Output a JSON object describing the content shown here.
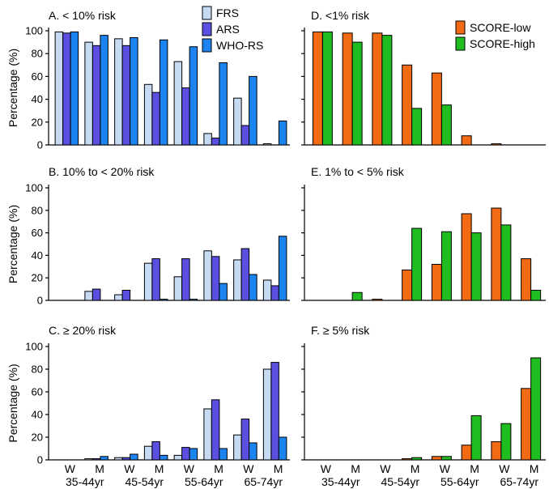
{
  "chart_data": [
    {
      "type": "bar",
      "panel": "A",
      "title": "A. < 10% risk",
      "ylabel": "Percentage (%)",
      "ylim": [
        0,
        100
      ],
      "yticks": [
        0,
        20,
        40,
        60,
        80,
        100
      ],
      "categories": [
        "W 35-44yr",
        "M 35-44yr",
        "W 45-54yr",
        "M 45-54yr",
        "W 55-64yr",
        "M 55-64yr",
        "W 65-74yr",
        "M 65-74yr"
      ],
      "series": [
        {
          "name": "FRS",
          "color": "#c6daf2",
          "values": [
            99,
            90,
            93,
            53,
            73,
            10,
            41,
            1
          ]
        },
        {
          "name": "ARS",
          "color": "#5a4fe0",
          "values": [
            98,
            87,
            87,
            46,
            50,
            6,
            17,
            0
          ]
        },
        {
          "name": "WHO-RS",
          "color": "#1b84f0",
          "values": [
            99,
            96,
            94,
            92,
            86,
            72,
            60,
            21
          ]
        }
      ],
      "legend": "top-right"
    },
    {
      "type": "bar",
      "panel": "B",
      "title": "B. 10% to < 20% risk",
      "ylabel": "Percentage (%)",
      "ylim": [
        0,
        100
      ],
      "yticks": [
        0,
        20,
        40,
        60,
        80,
        100
      ],
      "categories": [
        "W 35-44yr",
        "M 35-44yr",
        "W 45-54yr",
        "M 45-54yr",
        "W 55-64yr",
        "M 55-64yr",
        "W 65-74yr",
        "M 65-74yr"
      ],
      "series": [
        {
          "name": "FRS",
          "color": "#c6daf2",
          "values": [
            0,
            8,
            5,
            33,
            21,
            44,
            36,
            18
          ]
        },
        {
          "name": "ARS",
          "color": "#5a4fe0",
          "values": [
            0,
            10,
            9,
            37,
            37,
            39,
            46,
            13
          ]
        },
        {
          "name": "WHO-RS",
          "color": "#1b84f0",
          "values": [
            0,
            0,
            0,
            1,
            1,
            15,
            23,
            57
          ]
        }
      ]
    },
    {
      "type": "bar",
      "panel": "C",
      "title": "C. ≥ 20% risk",
      "ylabel": "Percentage (%)",
      "ylim": [
        0,
        100
      ],
      "yticks": [
        0,
        20,
        40,
        60,
        80,
        100
      ],
      "categories": [
        "W 35-44yr",
        "M 35-44yr",
        "W 45-54yr",
        "M 45-54yr",
        "W 55-64yr",
        "M 55-64yr",
        "W 65-74yr",
        "M 65-74yr"
      ],
      "series": [
        {
          "name": "FRS",
          "color": "#c6daf2",
          "values": [
            0,
            1,
            2,
            12,
            4,
            45,
            22,
            80
          ]
        },
        {
          "name": "ARS",
          "color": "#5a4fe0",
          "values": [
            0,
            1,
            2,
            16,
            11,
            53,
            36,
            86
          ]
        },
        {
          "name": "WHO-RS",
          "color": "#1b84f0",
          "values": [
            0,
            3,
            5,
            4,
            10,
            10,
            15,
            20
          ]
        }
      ],
      "xgroup_labels": [
        "W",
        "M",
        "W",
        "M",
        "W",
        "M",
        "W",
        "M"
      ],
      "xage_labels": [
        "35-44yr",
        "45-54yr",
        "55-64yr",
        "65-74yr"
      ]
    },
    {
      "type": "bar",
      "panel": "D",
      "title": "D. <1% risk",
      "ylim": [
        0,
        100
      ],
      "categories": [
        "W 35-44yr",
        "M 35-44yr",
        "W 45-54yr",
        "M 45-54yr",
        "W 55-64yr",
        "M 55-64yr",
        "W 65-74yr",
        "M 65-74yr"
      ],
      "series": [
        {
          "name": "SCORE-low",
          "color": "#f26a13",
          "values": [
            99,
            98,
            98,
            70,
            63,
            8,
            1,
            0
          ]
        },
        {
          "name": "SCORE-high",
          "color": "#1fbd1f",
          "values": [
            99,
            90,
            96,
            32,
            35,
            0,
            0,
            0
          ]
        }
      ],
      "legend": "top-right"
    },
    {
      "type": "bar",
      "panel": "E",
      "title": "E. 1% to < 5% risk",
      "ylim": [
        0,
        100
      ],
      "categories": [
        "W 35-44yr",
        "M 35-44yr",
        "W 45-54yr",
        "M 45-54yr",
        "W 55-64yr",
        "M 55-64yr",
        "W 65-74yr",
        "M 65-74yr"
      ],
      "series": [
        {
          "name": "SCORE-low",
          "color": "#f26a13",
          "values": [
            0,
            0,
            1,
            27,
            32,
            77,
            82,
            37
          ]
        },
        {
          "name": "SCORE-high",
          "color": "#1fbd1f",
          "values": [
            0,
            7,
            0,
            64,
            61,
            60,
            67,
            9
          ]
        }
      ]
    },
    {
      "type": "bar",
      "panel": "F",
      "title": "F. ≥ 5% risk",
      "ylim": [
        0,
        100
      ],
      "categories": [
        "W 35-44yr",
        "M 35-44yr",
        "W 45-54yr",
        "M 45-54yr",
        "W 55-64yr",
        "M 55-64yr",
        "W 65-74yr",
        "M 65-74yr"
      ],
      "series": [
        {
          "name": "SCORE-low",
          "color": "#f26a13",
          "values": [
            0,
            0,
            0,
            1,
            3,
            13,
            16,
            63
          ]
        },
        {
          "name": "SCORE-high",
          "color": "#1fbd1f",
          "values": [
            0,
            0,
            0,
            2,
            3,
            39,
            32,
            90
          ]
        }
      ],
      "xgroup_labels": [
        "W",
        "M",
        "W",
        "M",
        "W",
        "M",
        "W",
        "M"
      ],
      "xage_labels": [
        "35-44yr",
        "45-54yr",
        "55-64yr",
        "65-74yr"
      ]
    }
  ]
}
